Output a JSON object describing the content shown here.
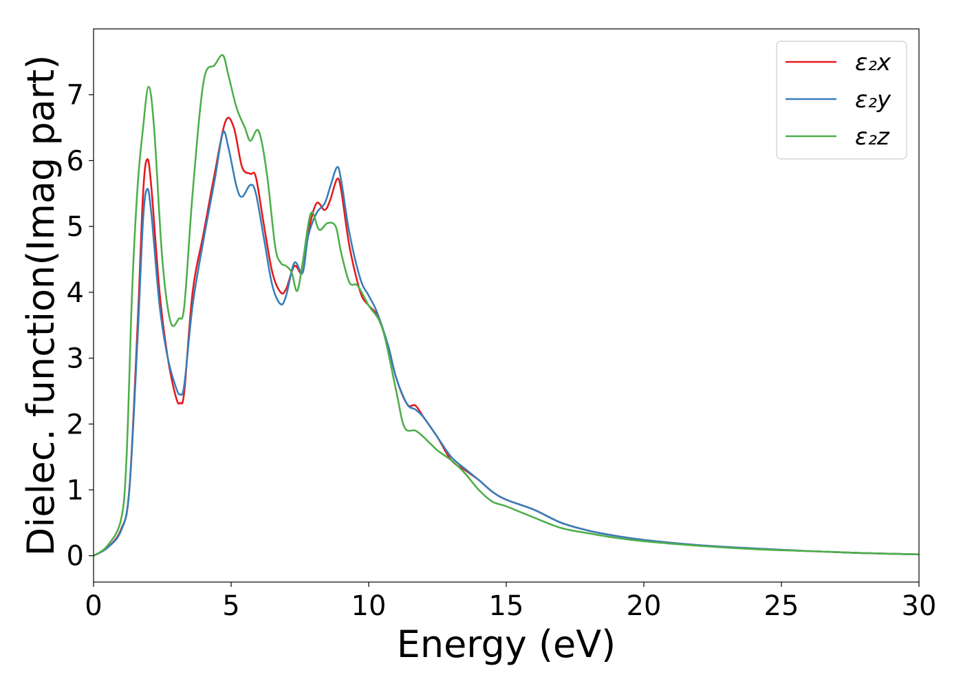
{
  "chart_data": {
    "type": "line",
    "title": "",
    "xlabel": "Energy (eV)",
    "ylabel": "Dielec. function(Imag part)",
    "xlim": [
      0,
      30
    ],
    "ylim": [
      -0.4,
      8.0
    ],
    "xticks": [
      0,
      5,
      10,
      15,
      20,
      25,
      30
    ],
    "yticks": [
      0,
      1,
      2,
      3,
      4,
      5,
      6,
      7
    ],
    "grid": false,
    "legend_position": "top-right",
    "series": [
      {
        "name": "ε₂x",
        "color": "#e41a1c",
        "points": [
          [
            0,
            0
          ],
          [
            0.5,
            0.12
          ],
          [
            1.0,
            0.4
          ],
          [
            1.3,
            1.0
          ],
          [
            1.6,
            3.5
          ],
          [
            1.8,
            5.5
          ],
          [
            1.95,
            6.02
          ],
          [
            2.1,
            5.6
          ],
          [
            2.4,
            4.0
          ],
          [
            2.7,
            3.0
          ],
          [
            3.0,
            2.4
          ],
          [
            3.15,
            2.32
          ],
          [
            3.3,
            2.5
          ],
          [
            3.6,
            4.0
          ],
          [
            4.0,
            4.9
          ],
          [
            4.4,
            5.8
          ],
          [
            4.8,
            6.6
          ],
          [
            5.1,
            6.5
          ],
          [
            5.4,
            5.9
          ],
          [
            5.7,
            5.8
          ],
          [
            5.9,
            5.75
          ],
          [
            6.2,
            5.0
          ],
          [
            6.5,
            4.3
          ],
          [
            6.8,
            4.0
          ],
          [
            7.0,
            4.05
          ],
          [
            7.3,
            4.4
          ],
          [
            7.6,
            4.3
          ],
          [
            7.8,
            4.9
          ],
          [
            8.1,
            5.35
          ],
          [
            8.4,
            5.25
          ],
          [
            8.6,
            5.4
          ],
          [
            8.85,
            5.72
          ],
          [
            9.0,
            5.55
          ],
          [
            9.3,
            4.7
          ],
          [
            9.7,
            4.0
          ],
          [
            10.0,
            3.8
          ],
          [
            10.3,
            3.65
          ],
          [
            10.7,
            3.2
          ],
          [
            11.0,
            2.7
          ],
          [
            11.4,
            2.3
          ],
          [
            11.7,
            2.28
          ],
          [
            12.0,
            2.1
          ],
          [
            12.5,
            1.8
          ],
          [
            13.0,
            1.45
          ],
          [
            13.5,
            1.3
          ],
          [
            14.0,
            1.15
          ],
          [
            14.5,
            0.97
          ],
          [
            15.0,
            0.85
          ],
          [
            16.0,
            0.7
          ],
          [
            17.0,
            0.5
          ],
          [
            18.0,
            0.38
          ],
          [
            19.0,
            0.3
          ],
          [
            20.0,
            0.24
          ],
          [
            22.0,
            0.16
          ],
          [
            24.0,
            0.11
          ],
          [
            26.0,
            0.07
          ],
          [
            28.0,
            0.04
          ],
          [
            30.0,
            0.02
          ]
        ]
      },
      {
        "name": "ε₂y",
        "color": "#377eb8",
        "points": [
          [
            0,
            0
          ],
          [
            0.5,
            0.12
          ],
          [
            1.0,
            0.38
          ],
          [
            1.3,
            1.0
          ],
          [
            1.6,
            3.3
          ],
          [
            1.8,
            5.1
          ],
          [
            1.95,
            5.57
          ],
          [
            2.1,
            5.2
          ],
          [
            2.4,
            3.8
          ],
          [
            2.7,
            3.0
          ],
          [
            3.0,
            2.55
          ],
          [
            3.15,
            2.45
          ],
          [
            3.3,
            2.6
          ],
          [
            3.6,
            3.8
          ],
          [
            4.0,
            4.8
          ],
          [
            4.4,
            5.7
          ],
          [
            4.7,
            6.42
          ],
          [
            4.9,
            6.2
          ],
          [
            5.2,
            5.6
          ],
          [
            5.4,
            5.45
          ],
          [
            5.7,
            5.63
          ],
          [
            5.9,
            5.5
          ],
          [
            6.2,
            4.8
          ],
          [
            6.5,
            4.1
          ],
          [
            6.8,
            3.82
          ],
          [
            7.0,
            3.95
          ],
          [
            7.3,
            4.45
          ],
          [
            7.6,
            4.3
          ],
          [
            7.8,
            4.85
          ],
          [
            8.1,
            5.2
          ],
          [
            8.4,
            5.35
          ],
          [
            8.6,
            5.6
          ],
          [
            8.85,
            5.9
          ],
          [
            9.0,
            5.7
          ],
          [
            9.3,
            4.9
          ],
          [
            9.7,
            4.2
          ],
          [
            10.0,
            3.95
          ],
          [
            10.3,
            3.7
          ],
          [
            10.7,
            3.2
          ],
          [
            11.0,
            2.7
          ],
          [
            11.4,
            2.3
          ],
          [
            11.7,
            2.22
          ],
          [
            12.0,
            2.1
          ],
          [
            12.5,
            1.8
          ],
          [
            13.0,
            1.5
          ],
          [
            13.5,
            1.32
          ],
          [
            14.0,
            1.15
          ],
          [
            14.5,
            0.97
          ],
          [
            15.0,
            0.85
          ],
          [
            16.0,
            0.7
          ],
          [
            17.0,
            0.5
          ],
          [
            18.0,
            0.38
          ],
          [
            19.0,
            0.3
          ],
          [
            20.0,
            0.24
          ],
          [
            22.0,
            0.16
          ],
          [
            24.0,
            0.11
          ],
          [
            26.0,
            0.07
          ],
          [
            28.0,
            0.04
          ],
          [
            30.0,
            0.02
          ]
        ]
      },
      {
        "name": "ε₂z",
        "color": "#4daf4a",
        "points": [
          [
            0,
            0
          ],
          [
            0.5,
            0.15
          ],
          [
            1.0,
            0.55
          ],
          [
            1.2,
            1.5
          ],
          [
            1.4,
            4.0
          ],
          [
            1.6,
            5.6
          ],
          [
            1.8,
            6.5
          ],
          [
            2.0,
            7.12
          ],
          [
            2.2,
            6.5
          ],
          [
            2.5,
            4.5
          ],
          [
            2.8,
            3.55
          ],
          [
            3.1,
            3.6
          ],
          [
            3.3,
            3.8
          ],
          [
            3.6,
            5.5
          ],
          [
            4.0,
            7.2
          ],
          [
            4.4,
            7.45
          ],
          [
            4.7,
            7.6
          ],
          [
            4.9,
            7.3
          ],
          [
            5.2,
            6.8
          ],
          [
            5.5,
            6.5
          ],
          [
            5.7,
            6.3
          ],
          [
            6.0,
            6.45
          ],
          [
            6.3,
            5.8
          ],
          [
            6.6,
            4.7
          ],
          [
            6.8,
            4.45
          ],
          [
            7.0,
            4.4
          ],
          [
            7.2,
            4.3
          ],
          [
            7.4,
            4.02
          ],
          [
            7.6,
            4.45
          ],
          [
            7.9,
            5.2
          ],
          [
            8.2,
            4.95
          ],
          [
            8.5,
            5.05
          ],
          [
            8.8,
            5.0
          ],
          [
            9.0,
            4.6
          ],
          [
            9.3,
            4.15
          ],
          [
            9.6,
            4.1
          ],
          [
            10.0,
            3.8
          ],
          [
            10.5,
            3.45
          ],
          [
            11.0,
            2.5
          ],
          [
            11.3,
            1.95
          ],
          [
            11.7,
            1.9
          ],
          [
            12.0,
            1.8
          ],
          [
            12.5,
            1.6
          ],
          [
            13.0,
            1.45
          ],
          [
            13.5,
            1.25
          ],
          [
            14.0,
            1.0
          ],
          [
            14.5,
            0.82
          ],
          [
            15.0,
            0.75
          ],
          [
            16.0,
            0.58
          ],
          [
            17.0,
            0.42
          ],
          [
            18.0,
            0.34
          ],
          [
            19.0,
            0.27
          ],
          [
            20.0,
            0.22
          ],
          [
            22.0,
            0.15
          ],
          [
            24.0,
            0.1
          ],
          [
            26.0,
            0.07
          ],
          [
            28.0,
            0.04
          ],
          [
            30.0,
            0.02
          ]
        ]
      }
    ]
  }
}
